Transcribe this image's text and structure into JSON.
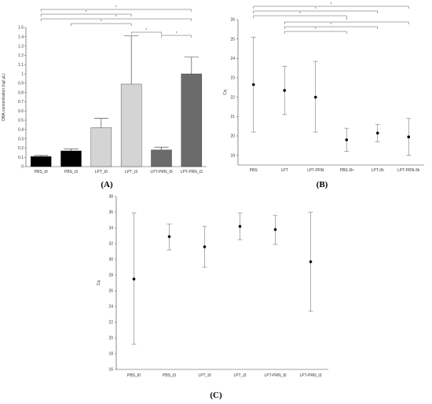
{
  "chart_data": [
    {
      "panel": "(A)",
      "type": "bar",
      "ylabel": "DNA concentration (ng/ µL)",
      "ylim": [
        0,
        1.5
      ],
      "yticks": [
        "0",
        "0.1",
        "0.2",
        "0.3",
        "0.4",
        "0.5",
        "0.6",
        "0.7",
        "0.8",
        "0.9",
        "1",
        "1.1",
        "1.2",
        "1.3",
        "1.4",
        "1.5"
      ],
      "categories": [
        "PBS_t0",
        "PBS_t3",
        "LPT_t0",
        "LPT_t3",
        "LPT-PRN_t0",
        "LPT-PRN_t3"
      ],
      "values": [
        0.11,
        0.17,
        0.42,
        0.89,
        0.18,
        1.0
      ],
      "errors": [
        0.01,
        0.02,
        0.1,
        0.52,
        0.03,
        0.18
      ],
      "colors": [
        "#000000",
        "#000000",
        "#d4d4d4",
        "#d4d4d4",
        "#6b6b6b",
        "#6b6b6b"
      ],
      "significance": [
        {
          "from": 0,
          "to": 5,
          "label": "*"
        },
        {
          "from": 0,
          "to": 3,
          "label": "*"
        },
        {
          "from": 0,
          "to": 5,
          "label": "*"
        },
        {
          "from": 1,
          "to": 3,
          "label": "*"
        },
        {
          "from": 3,
          "to": 4,
          "label": "*"
        },
        {
          "from": 4,
          "to": 5,
          "label": "*"
        }
      ]
    },
    {
      "panel": "(B)",
      "type": "scatter",
      "ylabel": "Cq",
      "ylim": [
        18.5,
        26
      ],
      "yticks": [
        "19",
        "20",
        "21",
        "22",
        "23",
        "24",
        "25",
        "26"
      ],
      "categories": [
        "PBS",
        "LPT",
        "LPT-PRN",
        "PBS-3h",
        "LPT-3h",
        "LPT-PRN-3h"
      ],
      "values": [
        22.65,
        22.35,
        22.0,
        19.8,
        20.15,
        19.95
      ],
      "lower": [
        20.2,
        21.1,
        20.2,
        19.2,
        19.7,
        19.0
      ],
      "upper": [
        25.1,
        23.6,
        23.85,
        20.4,
        20.6,
        20.9
      ],
      "significance": [
        {
          "from": 0,
          "to": 5,
          "label": "*"
        },
        {
          "from": 0,
          "to": 4,
          "label": "*"
        },
        {
          "from": 0,
          "to": 3,
          "label": "*"
        },
        {
          "from": 1,
          "to": 5,
          "label": "*"
        },
        {
          "from": 1,
          "to": 4,
          "label": "*"
        },
        {
          "from": 1,
          "to": 3,
          "label": "*"
        }
      ]
    },
    {
      "panel": "(C)",
      "type": "scatter",
      "ylabel": "Cq",
      "ylim": [
        16,
        38
      ],
      "yticks": [
        "16",
        "18",
        "20",
        "22",
        "24",
        "26",
        "28",
        "30",
        "32",
        "34",
        "36",
        "38"
      ],
      "categories": [
        "PBS_t0",
        "PBS_t3",
        "LPT_t0",
        "LPT_t3",
        "LPT-PRN_t0",
        "LPT-PRN_t3"
      ],
      "values": [
        27.5,
        32.9,
        31.6,
        34.2,
        33.8,
        29.7
      ],
      "lower": [
        19.2,
        31.2,
        29.0,
        32.5,
        31.9,
        23.4
      ],
      "upper": [
        35.9,
        34.5,
        34.2,
        35.9,
        35.6,
        36.0
      ]
    }
  ]
}
